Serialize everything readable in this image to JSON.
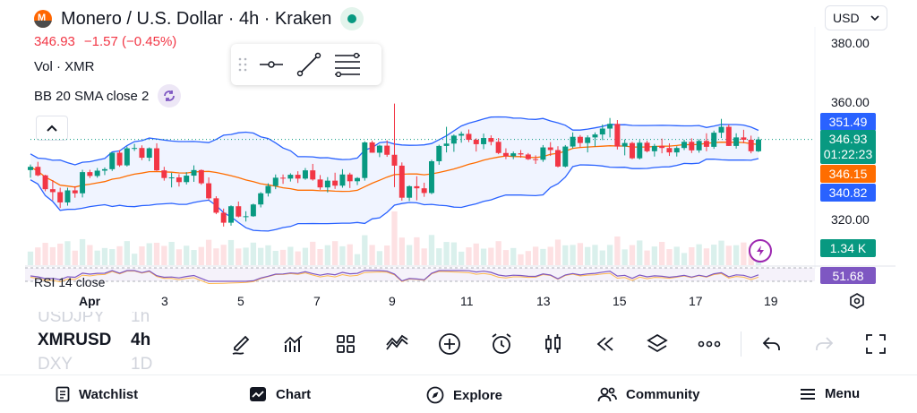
{
  "header": {
    "title": "Monero / U.S. Dollar · 4h · Kraken",
    "last_price": "346.93",
    "change": "−1.57 (−0.45%)",
    "currency": "USD"
  },
  "indicators": {
    "volume_label": "Vol · XMR",
    "bb_label": "BB 20 SMA close 2",
    "rsi_label": "RSI 14 close"
  },
  "price_axis": {
    "ticks": [
      "380.00",
      "360.00",
      "320.00"
    ],
    "tags": {
      "bb_upper": "351.49",
      "price": "346.93",
      "countdown": "01:22:23",
      "bb_mid": "346.15",
      "bb_lower": "340.82",
      "volume": "1.34 K",
      "rsi": "51.68"
    }
  },
  "time_axis": [
    "Apr",
    "3",
    "5",
    "7",
    "9",
    "11",
    "13",
    "15",
    "17",
    "19"
  ],
  "symbols": [
    "USDJPY",
    "XMRUSD",
    "DXY"
  ],
  "timeframes": [
    "1h",
    "4h",
    "1D"
  ],
  "nav": {
    "watchlist": "Watchlist",
    "chart": "Chart",
    "explore": "Explore",
    "community": "Community",
    "menu": "Menu"
  },
  "colors": {
    "up": "#089981",
    "down": "#f23645",
    "bb_band": "#2962ff",
    "bb_basis": "#ff6d00",
    "rsi": "#7e57c2"
  },
  "chart_data": {
    "type": "candlestick",
    "symbol": "XMRUSD",
    "interval": "4h",
    "x_range": [
      "Apr 1",
      "Apr 19"
    ],
    "y_range": [
      312,
      384
    ],
    "candles": [
      [
        336.5,
        338.4,
        333.9,
        337.6
      ],
      [
        337.6,
        339.3,
        334.4,
        334.7
      ],
      [
        334.7,
        334.9,
        329.3,
        330.0
      ],
      [
        330.0,
        333.1,
        326.2,
        329.0
      ],
      [
        329.0,
        330.5,
        323.6,
        325.5
      ],
      [
        325.5,
        330.5,
        324.4,
        329.6
      ],
      [
        329.6,
        331.0,
        327.1,
        328.6
      ],
      [
        328.6,
        336.6,
        327.2,
        335.8
      ],
      [
        335.8,
        336.6,
        333.8,
        334.5
      ],
      [
        334.5,
        337.2,
        333.9,
        336.3
      ],
      [
        336.3,
        337.4,
        334.8,
        336.8
      ],
      [
        336.8,
        342.4,
        336.2,
        342.4
      ],
      [
        342.4,
        343.3,
        337.6,
        338.1
      ],
      [
        338.1,
        344.5,
        337.7,
        343.9
      ],
      [
        343.9,
        345.4,
        343.0,
        344.0
      ],
      [
        344.0,
        344.9,
        339.9,
        340.7
      ],
      [
        340.7,
        344.2,
        339.5,
        343.9
      ],
      [
        343.9,
        345.6,
        336.2,
        336.4
      ],
      [
        336.4,
        337.6,
        332.9,
        333.8
      ],
      [
        333.8,
        335.6,
        330.6,
        334.0
      ],
      [
        334.0,
        335.1,
        330.9,
        332.4
      ],
      [
        332.4,
        335.8,
        331.6,
        334.6
      ],
      [
        334.6,
        338.1,
        332.5,
        336.5
      ],
      [
        336.5,
        336.7,
        331.5,
        332.0
      ],
      [
        332.0,
        334.0,
        326.3,
        326.9
      ],
      [
        326.9,
        327.6,
        321.5,
        322.0
      ],
      [
        322.0,
        323.4,
        317.3,
        318.6
      ],
      [
        318.6,
        324.5,
        317.6,
        324.2
      ],
      [
        324.2,
        325.8,
        320.4,
        320.7
      ],
      [
        320.7,
        322.5,
        319.0,
        320.8
      ],
      [
        320.8,
        325.1,
        320.6,
        324.8
      ],
      [
        324.8,
        329.0,
        323.8,
        328.6
      ],
      [
        328.6,
        332.0,
        327.5,
        331.1
      ],
      [
        331.1,
        335.0,
        330.0,
        333.9
      ],
      [
        333.9,
        335.0,
        331.8,
        333.6
      ],
      [
        333.6,
        335.4,
        332.6,
        334.9
      ],
      [
        334.9,
        336.1,
        332.1,
        333.6
      ],
      [
        333.6,
        337.2,
        333.2,
        336.4
      ],
      [
        336.4,
        338.6,
        332.9,
        333.3
      ],
      [
        333.3,
        334.8,
        329.8,
        330.6
      ],
      [
        330.6,
        334.1,
        328.9,
        332.9
      ],
      [
        332.9,
        335.6,
        330.1,
        331.2
      ],
      [
        331.2,
        336.8,
        330.5,
        335.0
      ],
      [
        335.0,
        335.6,
        330.4,
        332.7
      ],
      [
        332.7,
        334.1,
        331.4,
        333.8
      ],
      [
        333.8,
        346.3,
        332.9,
        345.9
      ],
      [
        345.9,
        346.5,
        342.4,
        342.4
      ],
      [
        342.4,
        345.1,
        340.9,
        344.8
      ],
      [
        344.8,
        346.6,
        341.0,
        341.7
      ],
      [
        341.7,
        359.1,
        330.7,
        338.0
      ],
      [
        338.0,
        339.1,
        326.1,
        327.1
      ],
      [
        327.1,
        331.3,
        326.0,
        331.0
      ],
      [
        331.0,
        334.4,
        326.2,
        330.3
      ],
      [
        330.3,
        332.2,
        327.4,
        328.7
      ],
      [
        328.7,
        340.0,
        328.3,
        339.5
      ],
      [
        339.5,
        345.1,
        338.3,
        344.7
      ],
      [
        344.7,
        351.2,
        342.5,
        345.5
      ],
      [
        345.5,
        348.6,
        342.7,
        348.2
      ],
      [
        348.2,
        349.6,
        345.8,
        348.8
      ],
      [
        348.8,
        350.3,
        346.0,
        346.8
      ],
      [
        346.8,
        347.3,
        342.8,
        345.3
      ],
      [
        345.3,
        348.9,
        343.6,
        347.4
      ],
      [
        347.4,
        348.3,
        344.9,
        346.1
      ],
      [
        346.1,
        347.4,
        341.9,
        342.3
      ],
      [
        342.3,
        343.9,
        340.2,
        341.2
      ],
      [
        341.2,
        342.8,
        340.2,
        342.2
      ],
      [
        342.2,
        343.3,
        340.7,
        341.8
      ],
      [
        341.8,
        342.3,
        339.9,
        340.2
      ],
      [
        340.2,
        341.5,
        338.6,
        340.0
      ],
      [
        340.0,
        345.0,
        339.3,
        344.2
      ],
      [
        344.2,
        346.0,
        341.3,
        343.3
      ],
      [
        343.3,
        344.6,
        337.4,
        337.7
      ],
      [
        337.7,
        345.0,
        337.4,
        344.5
      ],
      [
        344.5,
        349.3,
        343.9,
        347.8
      ],
      [
        347.8,
        348.4,
        344.2,
        345.7
      ],
      [
        345.7,
        348.3,
        342.5,
        347.6
      ],
      [
        347.6,
        349.3,
        344.5,
        348.6
      ],
      [
        348.6,
        352.0,
        346.7,
        350.6
      ],
      [
        350.6,
        354.2,
        347.6,
        352.2
      ],
      [
        352.2,
        353.5,
        343.5,
        344.5
      ],
      [
        344.5,
        346.9,
        341.5,
        345.7
      ],
      [
        345.7,
        346.1,
        340.2,
        340.5
      ],
      [
        340.5,
        346.7,
        340.1,
        345.8
      ],
      [
        345.8,
        346.5,
        342.5,
        342.9
      ],
      [
        342.9,
        345.4,
        341.1,
        344.7
      ],
      [
        344.7,
        347.2,
        342.2,
        344.0
      ],
      [
        344.0,
        345.6,
        341.3,
        342.5
      ],
      [
        342.5,
        344.6,
        341.1,
        344.0
      ],
      [
        344.0,
        346.8,
        343.3,
        346.1
      ],
      [
        346.1,
        347.3,
        342.3,
        343.2
      ],
      [
        343.2,
        347.0,
        342.4,
        346.4
      ],
      [
        346.4,
        349.0,
        342.9,
        344.4
      ],
      [
        344.4,
        349.9,
        343.7,
        349.2
      ],
      [
        349.2,
        353.9,
        347.4,
        351.2
      ],
      [
        351.2,
        352.0,
        344.7,
        344.7
      ],
      [
        344.7,
        349.0,
        343.8,
        347.6
      ],
      [
        347.6,
        350.2,
        345.6,
        346.8
      ],
      [
        346.8,
        348.2,
        342.2,
        342.9
      ],
      [
        342.9,
        347.8,
        342.6,
        346.9
      ]
    ],
    "volume_last": "1.34 K",
    "rsi_last": "51.68"
  }
}
